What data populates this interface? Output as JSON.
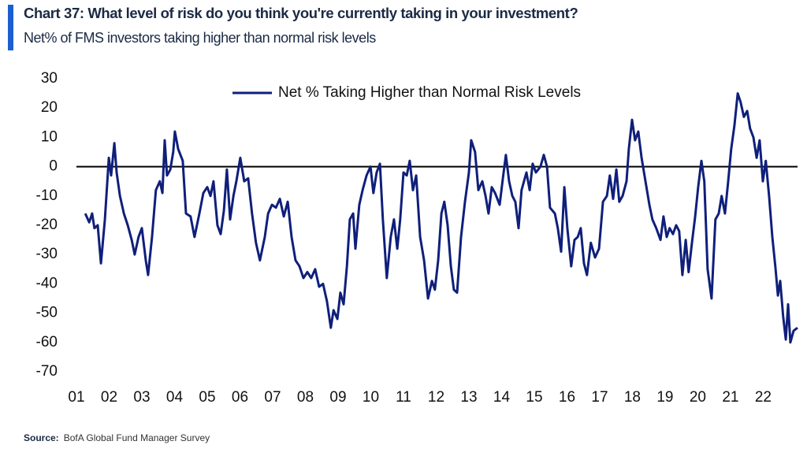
{
  "chart_data": {
    "type": "line",
    "title": "Chart 37: What level of risk do you think you're currently taking in your investment?",
    "subtitle": "Net% of FMS investors taking higher than normal risk levels",
    "source_label": "Source:",
    "source": "BofA Global Fund Manager Survey",
    "x": [
      2001.27,
      2001.39,
      2001.48,
      2001.55,
      2001.65,
      2001.75,
      2001.87,
      2001.99,
      2002.06,
      2002.16,
      2002.23,
      2002.33,
      2002.45,
      2002.57,
      2002.69,
      2002.78,
      2002.9,
      2003.0,
      2003.12,
      2003.19,
      2003.31,
      2003.43,
      2003.55,
      2003.63,
      2003.7,
      2003.77,
      2003.87,
      2003.96,
      2004.01,
      2004.11,
      2004.25,
      2004.35,
      2004.49,
      2004.61,
      2004.76,
      2004.88,
      2005.0,
      2005.1,
      2005.19,
      2005.31,
      2005.41,
      2005.51,
      2005.6,
      2005.7,
      2005.8,
      2005.89,
      2006.01,
      2006.13,
      2006.25,
      2006.37,
      2006.49,
      2006.61,
      2006.76,
      2006.86,
      2006.98,
      2007.1,
      2007.22,
      2007.34,
      2007.46,
      2007.58,
      2007.7,
      2007.82,
      2007.94,
      2008.06,
      2008.18,
      2008.3,
      2008.42,
      2008.54,
      2008.66,
      2008.78,
      2008.86,
      2008.98,
      2009.07,
      2009.17,
      2009.27,
      2009.36,
      2009.46,
      2009.53,
      2009.65,
      2009.75,
      2009.87,
      2009.99,
      2010.08,
      2010.18,
      2010.28,
      2010.37,
      2010.49,
      2010.61,
      2010.71,
      2010.81,
      2010.9,
      2011.0,
      2011.1,
      2011.19,
      2011.29,
      2011.39,
      2011.51,
      2011.63,
      2011.75,
      2011.87,
      2011.96,
      2012.06,
      2012.16,
      2012.25,
      2012.35,
      2012.45,
      2012.54,
      2012.64,
      2012.76,
      2012.88,
      2013.0,
      2013.07,
      2013.19,
      2013.29,
      2013.41,
      2013.51,
      2013.6,
      2013.7,
      2013.8,
      2013.94,
      2014.04,
      2014.13,
      2014.23,
      2014.33,
      2014.42,
      2014.52,
      2014.61,
      2014.76,
      2014.86,
      2014.95,
      2015.05,
      2015.19,
      2015.29,
      2015.39,
      2015.48,
      2015.63,
      2015.72,
      2015.82,
      2015.92,
      2016.01,
      2016.13,
      2016.23,
      2016.33,
      2016.42,
      2016.52,
      2016.61,
      2016.73,
      2016.86,
      2016.98,
      2017.1,
      2017.22,
      2017.31,
      2017.41,
      2017.51,
      2017.6,
      2017.7,
      2017.82,
      2017.89,
      2017.99,
      2018.08,
      2018.18,
      2018.28,
      2018.37,
      2018.52,
      2018.61,
      2018.73,
      2018.86,
      2018.95,
      2019.05,
      2019.14,
      2019.24,
      2019.34,
      2019.43,
      2019.53,
      2019.63,
      2019.72,
      2019.82,
      2019.92,
      2020.01,
      2020.11,
      2020.2,
      2020.3,
      2020.42,
      2020.54,
      2020.64,
      2020.73,
      2020.83,
      2020.93,
      2021.02,
      2021.12,
      2021.22,
      2021.31,
      2021.41,
      2021.51,
      2021.6,
      2021.7,
      2021.8,
      2021.89,
      2021.99,
      2022.08,
      2022.18,
      2022.28,
      2022.37,
      2022.45,
      2022.52,
      2022.61,
      2022.69,
      2022.76,
      2022.83,
      2022.93,
      2023.05
    ],
    "series": [
      {
        "name": "Net % Taking Higher than Normal Risk Levels",
        "color": "#0f1f7a",
        "values": [
          -16,
          -19,
          -16,
          -21,
          -20,
          -33,
          -18,
          3,
          -3,
          8,
          -2,
          -10,
          -16,
          -20,
          -25,
          -30,
          -24,
          -21,
          -32,
          -37,
          -24,
          -8,
          -5,
          -9,
          9,
          -3,
          -1,
          5,
          12,
          6,
          2,
          -16,
          -17,
          -24,
          -16,
          -9,
          -7,
          -10,
          -5,
          -20,
          -23,
          -15,
          -1,
          -18,
          -10,
          -5,
          3,
          -5,
          -4,
          -16,
          -26,
          -32,
          -24,
          -16,
          -13,
          -14,
          -11,
          -17,
          -12,
          -24,
          -32,
          -34,
          -38,
          -36,
          -38,
          -35,
          -41,
          -40,
          -46,
          -55,
          -49,
          -52,
          -43,
          -47,
          -34,
          -18,
          -16,
          -28,
          -13,
          -8,
          -3,
          0,
          -9,
          -2,
          1,
          -18,
          -38,
          -24,
          -18,
          -28,
          -18,
          -2,
          -3,
          2,
          -8,
          -3,
          -24,
          -32,
          -45,
          -39,
          -42,
          -32,
          -16,
          -12,
          -20,
          -34,
          -42,
          -43,
          -24,
          -12,
          -2,
          9,
          5,
          -8,
          -5,
          -10,
          -16,
          -7,
          -9,
          -13,
          -4,
          4,
          -5,
          -10,
          -12,
          -21,
          -8,
          -2,
          -8,
          1,
          -2,
          0,
          4,
          0,
          -14,
          -16,
          -21,
          -29,
          -7,
          -21,
          -34,
          -25,
          -24,
          -21,
          -33,
          -37,
          -26,
          -31,
          -28,
          -12,
          -10,
          -3,
          -11,
          -1,
          -12,
          -10,
          -5,
          6,
          16,
          9,
          12,
          3,
          -3,
          -13,
          -18,
          -21,
          -25,
          -17,
          -24,
          -21,
          -23,
          -20,
          -22,
          -37,
          -25,
          -36,
          -26,
          -17,
          -7,
          2,
          -5,
          -35,
          -45,
          -18,
          -16,
          -10,
          -16,
          -5,
          6,
          14,
          25,
          22,
          17,
          19,
          13,
          10,
          3,
          9,
          -5,
          2,
          -10,
          -24,
          -34,
          -44,
          -39,
          -51,
          -59,
          -47,
          -60,
          -56,
          -55
        ]
      }
    ],
    "xlim": [
      2001,
      2023.05
    ],
    "xticks": [
      {
        "value": 2001,
        "label": "01"
      },
      {
        "value": 2002,
        "label": "02"
      },
      {
        "value": 2003,
        "label": "03"
      },
      {
        "value": 2004,
        "label": "04"
      },
      {
        "value": 2005,
        "label": "05"
      },
      {
        "value": 2006,
        "label": "06"
      },
      {
        "value": 2007,
        "label": "07"
      },
      {
        "value": 2008,
        "label": "08"
      },
      {
        "value": 2009,
        "label": "09"
      },
      {
        "value": 2010,
        "label": "10"
      },
      {
        "value": 2011,
        "label": "11"
      },
      {
        "value": 2012,
        "label": "12"
      },
      {
        "value": 2013,
        "label": "13"
      },
      {
        "value": 2014,
        "label": "14"
      },
      {
        "value": 2015,
        "label": "15"
      },
      {
        "value": 2016,
        "label": "16"
      },
      {
        "value": 2017,
        "label": "17"
      },
      {
        "value": 2018,
        "label": "18"
      },
      {
        "value": 2019,
        "label": "19"
      },
      {
        "value": 2020,
        "label": "20"
      },
      {
        "value": 2021,
        "label": "21"
      },
      {
        "value": 2022,
        "label": "22"
      }
    ],
    "ylim": [
      -70,
      30
    ],
    "yticks": [
      30,
      20,
      10,
      0,
      -10,
      -20,
      -30,
      -40,
      -50,
      -60,
      -70
    ],
    "reference_line": 0,
    "grid": false,
    "legend": "top"
  }
}
